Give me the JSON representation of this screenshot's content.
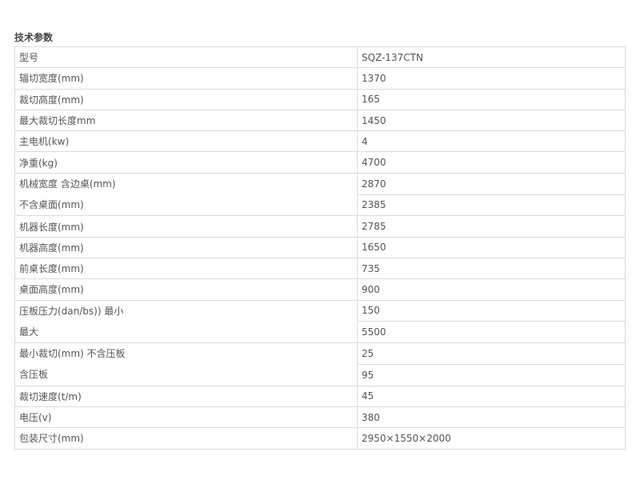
{
  "title": "技术参数",
  "rows": [
    {
      "label": "型号",
      "value": "SQZ-137CTN"
    },
    {
      "label": "辐切宽度(mm)",
      "value": "1370"
    },
    {
      "label": "裁切高度(mm)",
      "value": "165"
    },
    {
      "label": "最大裁切长度mm",
      "value": "1450"
    },
    {
      "label": "主电机(kw)",
      "value": "4"
    },
    {
      "label": "净重(kg)",
      "value": "4700"
    },
    {
      "labels": [
        "机械宽度 含边桌(mm)",
        "不含桌面(mm)"
      ],
      "values": [
        "2870",
        "2385"
      ]
    },
    {
      "label": "机器长度(mm)",
      "value": "2785"
    },
    {
      "label": "机器高度(mm)",
      "value": "1650"
    },
    {
      "label": "前桌长度(mm)",
      "value": "735"
    },
    {
      "label": "桌面高度(mm)",
      "value": "900"
    },
    {
      "labels": [
        "压板压力(dan/bs)) 最小",
        "最大"
      ],
      "values": [
        "150",
        "5500"
      ]
    },
    {
      "labels": [
        "最小裁切(mm) 不含压板",
        "含压板"
      ],
      "values": [
        "25",
        "95"
      ]
    },
    {
      "label": "裁切速度(t/m)",
      "value": "45"
    },
    {
      "label": "电压(v)",
      "value": "380"
    },
    {
      "label": "包装尺寸(mm)",
      "value": "2950×1550×2000"
    }
  ]
}
